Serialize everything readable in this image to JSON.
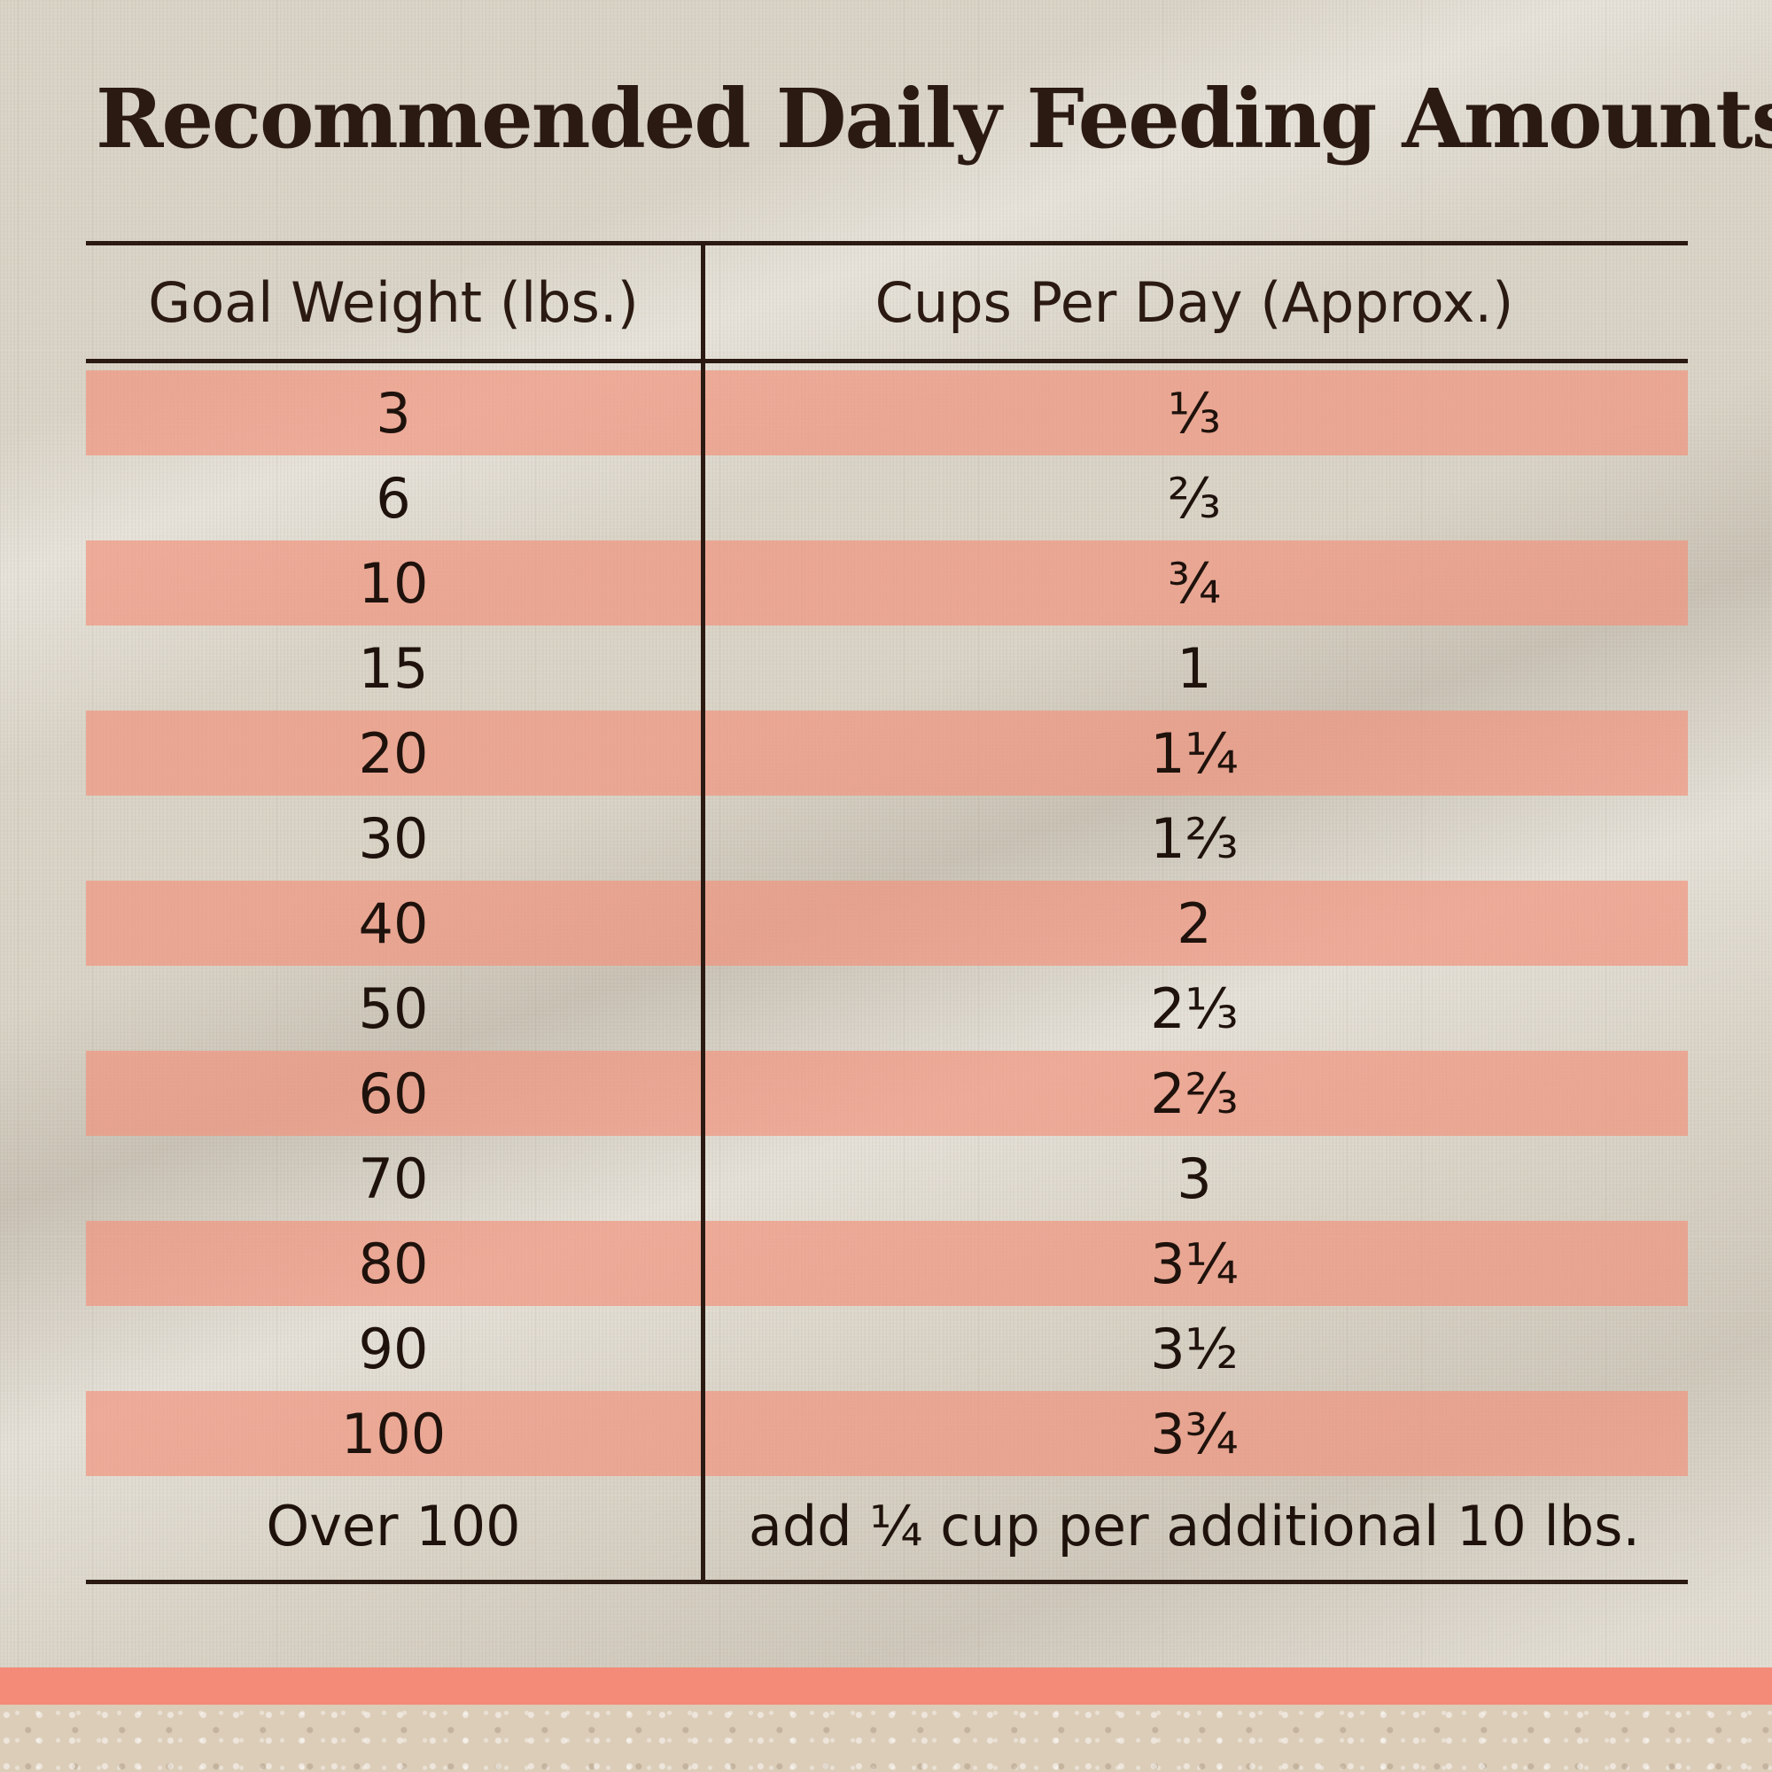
{
  "title": "Recommended Daily Feeding Amounts:",
  "table": {
    "headers": {
      "weight": "Goal Weight (lbs.)",
      "cups": "Cups Per Day (Approx.)"
    },
    "rows": [
      {
        "weight": "3",
        "cups": "⅓"
      },
      {
        "weight": "6",
        "cups": "⅔"
      },
      {
        "weight": "10",
        "cups": "¾"
      },
      {
        "weight": "15",
        "cups": "1"
      },
      {
        "weight": "20",
        "cups": "1¼"
      },
      {
        "weight": "30",
        "cups": "1⅔"
      },
      {
        "weight": "40",
        "cups": "2"
      },
      {
        "weight": "50",
        "cups": "2⅓"
      },
      {
        "weight": "60",
        "cups": "2⅔"
      },
      {
        "weight": "70",
        "cups": "3"
      },
      {
        "weight": "80",
        "cups": "3¼"
      },
      {
        "weight": "90",
        "cups": "3½"
      },
      {
        "weight": "100",
        "cups": "3¾"
      },
      {
        "weight": "Over 100",
        "cups": "add ¼ cup per additional 10 lbs."
      }
    ]
  },
  "colors": {
    "stripe": "#f0967f",
    "text": "#2b1a12",
    "accent_band": "#f48b78",
    "background": "#d9d3c6"
  }
}
